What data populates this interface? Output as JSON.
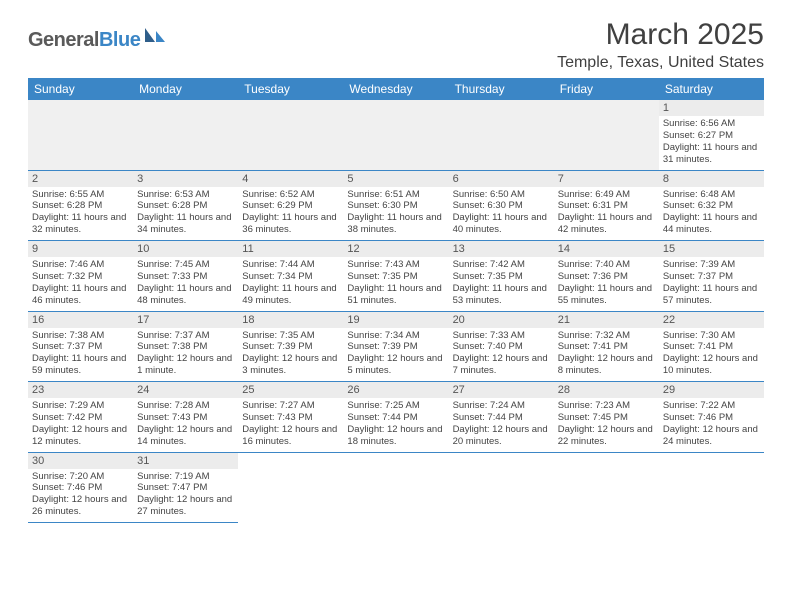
{
  "logo": {
    "part1": "General",
    "part2": "Blue",
    "accent_color": "#3b86c6",
    "gray_color": "#5a5a5a"
  },
  "title": "March 2025",
  "location": "Temple, Texas, United States",
  "colors": {
    "header_bg": "#3b86c6",
    "header_fg": "#ffffff",
    "border": "#3b86c6",
    "daynum_bg": "#ececec",
    "text": "#444444"
  },
  "weekdays": [
    "Sunday",
    "Monday",
    "Tuesday",
    "Wednesday",
    "Thursday",
    "Friday",
    "Saturday"
  ],
  "weeks": [
    [
      null,
      null,
      null,
      null,
      null,
      null,
      {
        "n": "1",
        "sunrise": "Sunrise: 6:56 AM",
        "sunset": "Sunset: 6:27 PM",
        "daylight": "Daylight: 11 hours and 31 minutes."
      }
    ],
    [
      {
        "n": "2",
        "sunrise": "Sunrise: 6:55 AM",
        "sunset": "Sunset: 6:28 PM",
        "daylight": "Daylight: 11 hours and 32 minutes."
      },
      {
        "n": "3",
        "sunrise": "Sunrise: 6:53 AM",
        "sunset": "Sunset: 6:28 PM",
        "daylight": "Daylight: 11 hours and 34 minutes."
      },
      {
        "n": "4",
        "sunrise": "Sunrise: 6:52 AM",
        "sunset": "Sunset: 6:29 PM",
        "daylight": "Daylight: 11 hours and 36 minutes."
      },
      {
        "n": "5",
        "sunrise": "Sunrise: 6:51 AM",
        "sunset": "Sunset: 6:30 PM",
        "daylight": "Daylight: 11 hours and 38 minutes."
      },
      {
        "n": "6",
        "sunrise": "Sunrise: 6:50 AM",
        "sunset": "Sunset: 6:30 PM",
        "daylight": "Daylight: 11 hours and 40 minutes."
      },
      {
        "n": "7",
        "sunrise": "Sunrise: 6:49 AM",
        "sunset": "Sunset: 6:31 PM",
        "daylight": "Daylight: 11 hours and 42 minutes."
      },
      {
        "n": "8",
        "sunrise": "Sunrise: 6:48 AM",
        "sunset": "Sunset: 6:32 PM",
        "daylight": "Daylight: 11 hours and 44 minutes."
      }
    ],
    [
      {
        "n": "9",
        "sunrise": "Sunrise: 7:46 AM",
        "sunset": "Sunset: 7:32 PM",
        "daylight": "Daylight: 11 hours and 46 minutes."
      },
      {
        "n": "10",
        "sunrise": "Sunrise: 7:45 AM",
        "sunset": "Sunset: 7:33 PM",
        "daylight": "Daylight: 11 hours and 48 minutes."
      },
      {
        "n": "11",
        "sunrise": "Sunrise: 7:44 AM",
        "sunset": "Sunset: 7:34 PM",
        "daylight": "Daylight: 11 hours and 49 minutes."
      },
      {
        "n": "12",
        "sunrise": "Sunrise: 7:43 AM",
        "sunset": "Sunset: 7:35 PM",
        "daylight": "Daylight: 11 hours and 51 minutes."
      },
      {
        "n": "13",
        "sunrise": "Sunrise: 7:42 AM",
        "sunset": "Sunset: 7:35 PM",
        "daylight": "Daylight: 11 hours and 53 minutes."
      },
      {
        "n": "14",
        "sunrise": "Sunrise: 7:40 AM",
        "sunset": "Sunset: 7:36 PM",
        "daylight": "Daylight: 11 hours and 55 minutes."
      },
      {
        "n": "15",
        "sunrise": "Sunrise: 7:39 AM",
        "sunset": "Sunset: 7:37 PM",
        "daylight": "Daylight: 11 hours and 57 minutes."
      }
    ],
    [
      {
        "n": "16",
        "sunrise": "Sunrise: 7:38 AM",
        "sunset": "Sunset: 7:37 PM",
        "daylight": "Daylight: 11 hours and 59 minutes."
      },
      {
        "n": "17",
        "sunrise": "Sunrise: 7:37 AM",
        "sunset": "Sunset: 7:38 PM",
        "daylight": "Daylight: 12 hours and 1 minute."
      },
      {
        "n": "18",
        "sunrise": "Sunrise: 7:35 AM",
        "sunset": "Sunset: 7:39 PM",
        "daylight": "Daylight: 12 hours and 3 minutes."
      },
      {
        "n": "19",
        "sunrise": "Sunrise: 7:34 AM",
        "sunset": "Sunset: 7:39 PM",
        "daylight": "Daylight: 12 hours and 5 minutes."
      },
      {
        "n": "20",
        "sunrise": "Sunrise: 7:33 AM",
        "sunset": "Sunset: 7:40 PM",
        "daylight": "Daylight: 12 hours and 7 minutes."
      },
      {
        "n": "21",
        "sunrise": "Sunrise: 7:32 AM",
        "sunset": "Sunset: 7:41 PM",
        "daylight": "Daylight: 12 hours and 8 minutes."
      },
      {
        "n": "22",
        "sunrise": "Sunrise: 7:30 AM",
        "sunset": "Sunset: 7:41 PM",
        "daylight": "Daylight: 12 hours and 10 minutes."
      }
    ],
    [
      {
        "n": "23",
        "sunrise": "Sunrise: 7:29 AM",
        "sunset": "Sunset: 7:42 PM",
        "daylight": "Daylight: 12 hours and 12 minutes."
      },
      {
        "n": "24",
        "sunrise": "Sunrise: 7:28 AM",
        "sunset": "Sunset: 7:43 PM",
        "daylight": "Daylight: 12 hours and 14 minutes."
      },
      {
        "n": "25",
        "sunrise": "Sunrise: 7:27 AM",
        "sunset": "Sunset: 7:43 PM",
        "daylight": "Daylight: 12 hours and 16 minutes."
      },
      {
        "n": "26",
        "sunrise": "Sunrise: 7:25 AM",
        "sunset": "Sunset: 7:44 PM",
        "daylight": "Daylight: 12 hours and 18 minutes."
      },
      {
        "n": "27",
        "sunrise": "Sunrise: 7:24 AM",
        "sunset": "Sunset: 7:44 PM",
        "daylight": "Daylight: 12 hours and 20 minutes."
      },
      {
        "n": "28",
        "sunrise": "Sunrise: 7:23 AM",
        "sunset": "Sunset: 7:45 PM",
        "daylight": "Daylight: 12 hours and 22 minutes."
      },
      {
        "n": "29",
        "sunrise": "Sunrise: 7:22 AM",
        "sunset": "Sunset: 7:46 PM",
        "daylight": "Daylight: 12 hours and 24 minutes."
      }
    ],
    [
      {
        "n": "30",
        "sunrise": "Sunrise: 7:20 AM",
        "sunset": "Sunset: 7:46 PM",
        "daylight": "Daylight: 12 hours and 26 minutes."
      },
      {
        "n": "31",
        "sunrise": "Sunrise: 7:19 AM",
        "sunset": "Sunset: 7:47 PM",
        "daylight": "Daylight: 12 hours and 27 minutes."
      },
      null,
      null,
      null,
      null,
      null
    ]
  ]
}
